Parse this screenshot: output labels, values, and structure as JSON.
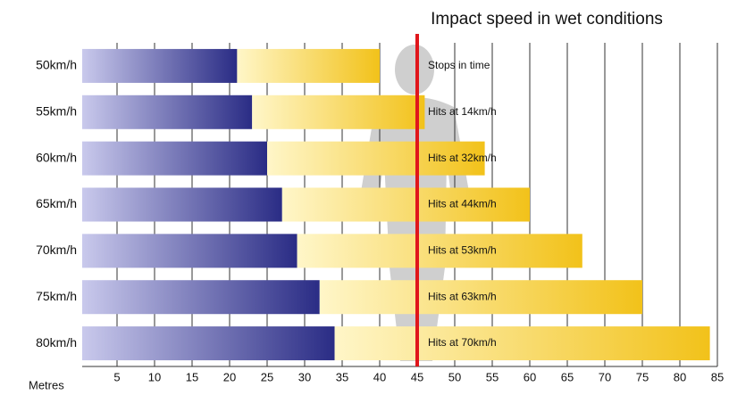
{
  "chart_data": {
    "type": "stacked-horizontal-bar",
    "title": "Impact speed in wet conditions",
    "x_label": "Metres",
    "categories": [
      "50km/h",
      "55km/h",
      "60km/h",
      "65km/h",
      "70km/h",
      "75km/h",
      "80km/h"
    ],
    "series": [
      {
        "color": "#2a2c85",
        "values": [
          21,
          23,
          25,
          27,
          29,
          32,
          34
        ]
      },
      {
        "color": "#f2c21a",
        "values": [
          19,
          23,
          29,
          33,
          38,
          43,
          50
        ]
      }
    ],
    "annotations": [
      "Stops in time",
      "Hits at 14km/h",
      "Hits at 32km/h",
      "Hits at 44km/h",
      "Hits at 53km/h",
      "Hits at 63km/h",
      "Hits at 70km/h"
    ],
    "reference_line": {
      "value": 45,
      "color": "#e0161b"
    },
    "xlim": [
      0,
      85
    ],
    "xticks": [
      5,
      10,
      15,
      20,
      25,
      30,
      35,
      40,
      45,
      50,
      55,
      60,
      65,
      70,
      75,
      80,
      85
    ],
    "grid": true
  }
}
